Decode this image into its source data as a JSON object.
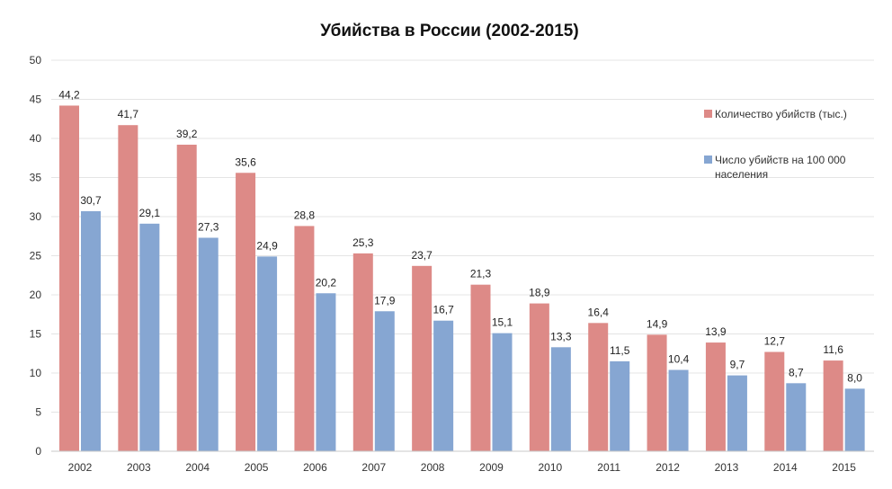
{
  "chart_data": {
    "type": "bar",
    "title": "Убийства в России (2002-2015)",
    "xlabel": "",
    "ylabel": "",
    "ylim": [
      0,
      50
    ],
    "yticks": [
      0,
      5,
      10,
      15,
      20,
      25,
      30,
      35,
      40,
      45,
      50
    ],
    "grid": true,
    "legend_position": "right",
    "categories": [
      "2002",
      "2003",
      "2004",
      "2005",
      "2006",
      "2007",
      "2008",
      "2009",
      "2010",
      "2011",
      "2012",
      "2013",
      "2014",
      "2015"
    ],
    "series": [
      {
        "name": "Количество убийств (тыс.)",
        "color": "#dd8a87",
        "values": [
          44.2,
          41.7,
          39.2,
          35.6,
          28.8,
          25.3,
          23.7,
          21.3,
          18.9,
          16.4,
          14.9,
          13.9,
          12.7,
          11.6
        ],
        "labels": [
          "44,2",
          "41,7",
          "39,2",
          "35,6",
          "28,8",
          "25,3",
          "23,7",
          "21,3",
          "18,9",
          "16,4",
          "14,9",
          "13,9",
          "12,7",
          "11,6"
        ]
      },
      {
        "name": "Число убийств на 100 000 населения",
        "legend_lines": [
          "Число убийств на 100 000",
          "населения"
        ],
        "color": "#86a6d2",
        "values": [
          30.7,
          29.1,
          27.3,
          24.9,
          20.2,
          17.9,
          16.7,
          15.1,
          13.3,
          11.5,
          10.4,
          9.7,
          8.7,
          8.0
        ],
        "labels": [
          "30,7",
          "29,1",
          "27,3",
          "24,9",
          "20,2",
          "17,9",
          "16,7",
          "15,1",
          "13,3",
          "11,5",
          "10,4",
          "9,7",
          "8,7",
          "8,0"
        ]
      }
    ]
  }
}
